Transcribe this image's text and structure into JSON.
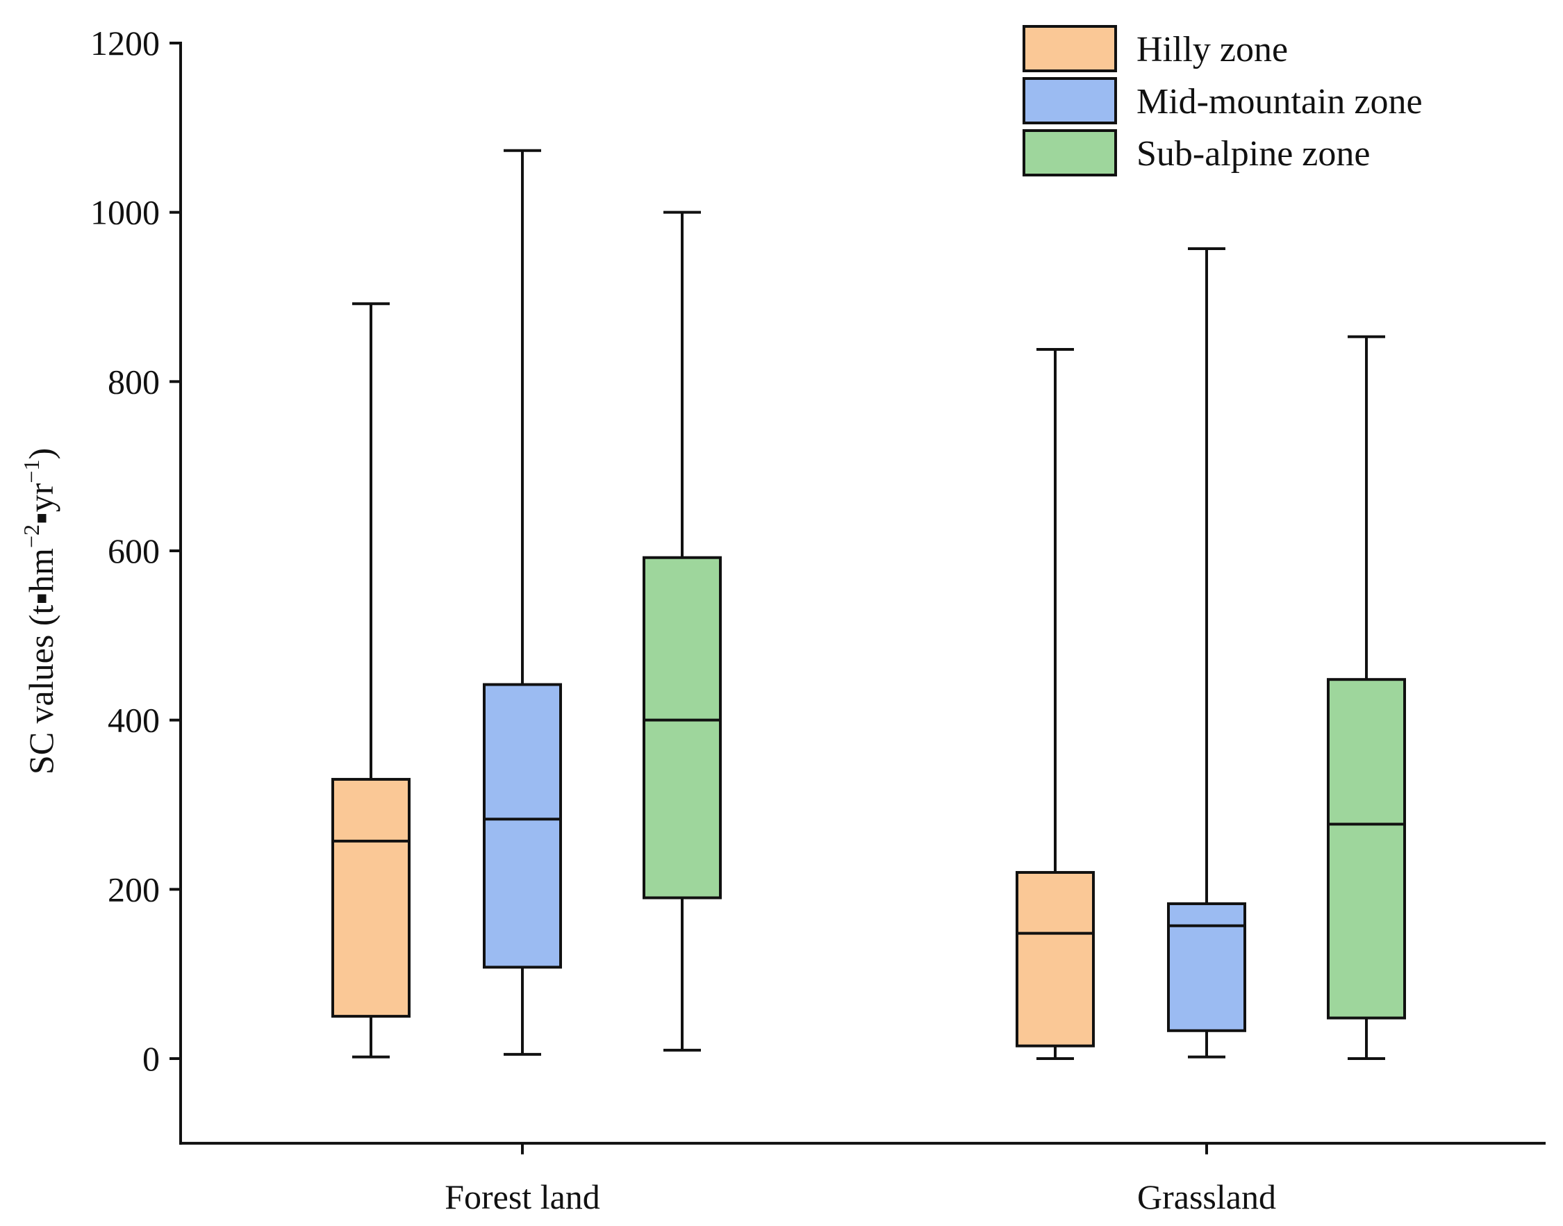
{
  "chart_data": {
    "type": "boxplot",
    "title": "",
    "xlabel": "",
    "ylabel": "SC values (t▪hm⁻²▪yr⁻¹)",
    "ylabel_parts": [
      "SC values (t",
      "▪",
      "hm",
      "−2",
      "▪",
      "yr",
      "−1",
      ")"
    ],
    "ylim": [
      -100,
      1200
    ],
    "yticks": [
      0,
      200,
      400,
      600,
      800,
      1000,
      1200
    ],
    "ytick_labels": [
      "0",
      "200",
      "400",
      "600",
      "800",
      "1000",
      "1200"
    ],
    "categories": [
      "Forest land",
      "Grassland"
    ],
    "legend_position": "top-right",
    "series": [
      {
        "name": "Hilly zone",
        "color": "#FAC896",
        "boxes": [
          {
            "min": 2,
            "q1": 50,
            "median": 257,
            "q3": 330,
            "max": 892
          },
          {
            "min": 0,
            "q1": 15,
            "median": 148,
            "q3": 220,
            "max": 838
          }
        ]
      },
      {
        "name": "Mid-mountain zone",
        "color": "#9BBBF2",
        "boxes": [
          {
            "min": 5,
            "q1": 108,
            "median": 283,
            "q3": 442,
            "max": 1073
          },
          {
            "min": 2,
            "q1": 33,
            "median": 157,
            "q3": 183,
            "max": 957
          }
        ]
      },
      {
        "name": "Sub-alpine zone",
        "color": "#9ED69C",
        "boxes": [
          {
            "min": 10,
            "q1": 190,
            "median": 400,
            "q3": 592,
            "max": 1000
          },
          {
            "min": 0,
            "q1": 48,
            "median": 277,
            "q3": 448,
            "max": 853
          }
        ]
      }
    ]
  }
}
